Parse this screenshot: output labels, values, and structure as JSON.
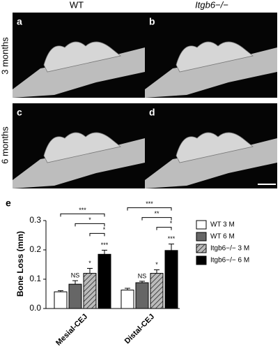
{
  "panels": {
    "columns": [
      "WT",
      "Itgb6−/−"
    ],
    "rows": [
      "3 months",
      "6 months"
    ],
    "letters": [
      "a",
      "b",
      "c",
      "d"
    ]
  },
  "chart_data": {
    "type": "bar",
    "panel_letter": "e",
    "ylabel": "Bone Loss (mm)",
    "categories": [
      "Mesial-CEJ",
      "Distal-CEJ"
    ],
    "ylim": [
      0,
      0.3
    ],
    "yticks": [
      {
        "value": 0,
        "label": "0.0"
      },
      0.1,
      0.2,
      0.3
    ],
    "series": [
      {
        "name": "WT 3 M",
        "color": "#ffffff",
        "values": [
          0.057,
          0.063
        ],
        "errors": [
          0.004,
          0.006
        ]
      },
      {
        "name": "WT 6 M",
        "color": "#666666",
        "values": [
          0.083,
          0.088
        ],
        "errors": [
          0.012,
          0.005
        ],
        "significance": [
          "NS",
          "NS"
        ]
      },
      {
        "name": "Itgb6−/− 3 M",
        "color": "#999999",
        "pattern": "hatch",
        "values": [
          0.12,
          0.12
        ],
        "errors": [
          0.017,
          0.012
        ],
        "significance": [
          "*",
          "*"
        ]
      },
      {
        "name": "Itgb6−/− 6 M",
        "color": "#000000",
        "values": [
          0.185,
          0.198
        ],
        "errors": [
          0.014,
          0.022
        ],
        "significance": [
          "***",
          "***"
        ]
      }
    ],
    "comparisons": [
      [
        "***",
        "*",
        "*"
      ],
      [
        "***",
        "**",
        "*"
      ]
    ],
    "legend": "right"
  }
}
